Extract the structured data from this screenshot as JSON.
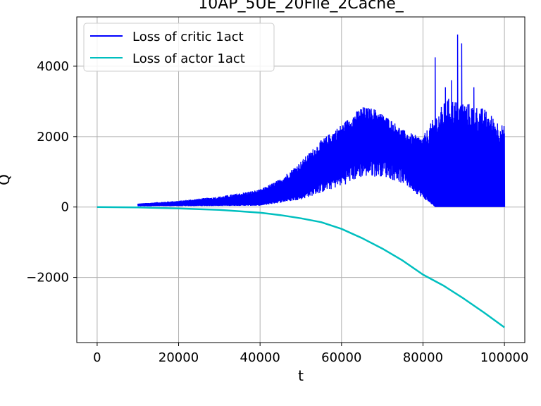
{
  "chart_data": {
    "type": "line",
    "title": "10AP_5UE_20File_2Cache_",
    "xlabel": "t",
    "ylabel": "Q",
    "xlim": [
      -5000,
      105000
    ],
    "ylim": [
      -3850,
      5400
    ],
    "xticks": [
      0,
      20000,
      40000,
      60000,
      80000,
      100000
    ],
    "xtick_labels": [
      "0",
      "20000",
      "40000",
      "60000",
      "80000",
      "100000"
    ],
    "yticks": [
      -2000,
      0,
      2000,
      4000
    ],
    "ytick_labels": [
      "−2000",
      "0",
      "2000",
      "4000"
    ],
    "grid": true,
    "legend_position": "top-left",
    "series": [
      {
        "name": "Loss of critic 1act",
        "color": "#0000ff",
        "style": "oscillating band between 0 and upper envelope",
        "start_x": 10000,
        "end_x": 100000,
        "upper_envelope": {
          "x": [
            10000,
            20000,
            30000,
            40000,
            45000,
            50000,
            55000,
            60000,
            65000,
            68000,
            72000,
            75000,
            78000,
            80000,
            83000,
            86000,
            90000,
            95000,
            100000
          ],
          "y": [
            100,
            180,
            300,
            500,
            800,
            1300,
            1900,
            2350,
            2850,
            2800,
            2500,
            2200,
            2050,
            2000,
            2600,
            3100,
            3000,
            2800,
            2300
          ]
        },
        "lower_envelope": {
          "x": [
            10000,
            40000,
            50000,
            60000,
            65000,
            70000,
            75000,
            80000,
            83000,
            86000,
            100000
          ],
          "y": [
            30,
            60,
            350,
            1000,
            1400,
            1450,
            1100,
            400,
            0,
            0,
            0
          ]
        },
        "spikes": [
          {
            "x": 83000,
            "y": 4250
          },
          {
            "x": 88500,
            "y": 4900
          },
          {
            "x": 89500,
            "y": 4650
          },
          {
            "x": 85500,
            "y": 3400
          },
          {
            "x": 92500,
            "y": 3400
          },
          {
            "x": 87000,
            "y": 3600
          }
        ]
      },
      {
        "name": "Loss of actor 1act",
        "color": "#00bfbf",
        "x": [
          0,
          10000,
          20000,
          30000,
          40000,
          45000,
          50000,
          55000,
          60000,
          65000,
          70000,
          75000,
          80000,
          85000,
          90000,
          95000,
          100000
        ],
        "y": [
          0,
          -10,
          -40,
          -80,
          -160,
          -230,
          -320,
          -430,
          -620,
          -880,
          -1180,
          -1520,
          -1920,
          -2230,
          -2600,
          -3000,
          -3420
        ]
      }
    ]
  }
}
